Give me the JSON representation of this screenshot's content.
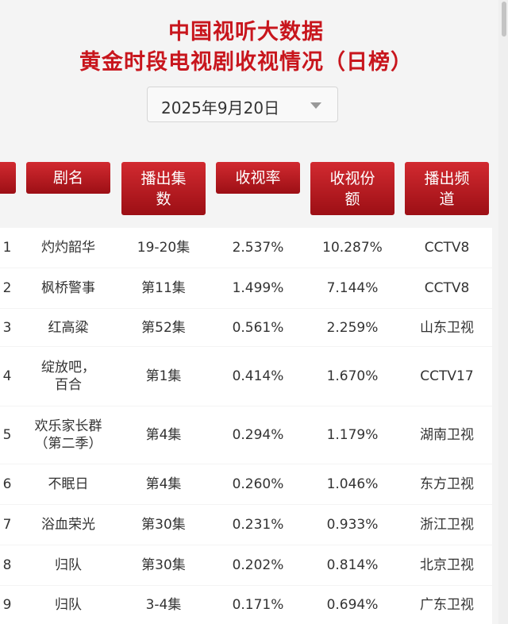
{
  "title_line1": "中国视听大数据",
  "title_line2": "黄金时段电视剧收视情况（日榜）",
  "date_select": {
    "value": "2025年9月20日",
    "icon": "chevron-down-icon"
  },
  "table": {
    "headers": {
      "name": "剧名",
      "episodes": "播出集数",
      "rating": "收视率",
      "share": "收视份额",
      "channel": "播出频道"
    },
    "rows": [
      {
        "rank": "1",
        "name": "灼灼韶华",
        "episodes": "19-20集",
        "rating": "2.537%",
        "share": "10.287%",
        "channel": "CCTV8"
      },
      {
        "rank": "2",
        "name": "枫桥警事",
        "episodes": "第11集",
        "rating": "1.499%",
        "share": "7.144%",
        "channel": "CCTV8"
      },
      {
        "rank": "3",
        "name": "红高粱",
        "episodes": "第52集",
        "rating": "0.561%",
        "share": "2.259%",
        "channel": "山东卫视"
      },
      {
        "rank": "4",
        "name": "绽放吧，百合",
        "episodes": "第1集",
        "rating": "0.414%",
        "share": "1.670%",
        "channel": "CCTV17"
      },
      {
        "rank": "5",
        "name": "欢乐家长群（第二季）",
        "episodes": "第4集",
        "rating": "0.294%",
        "share": "1.179%",
        "channel": "湖南卫视"
      },
      {
        "rank": "6",
        "name": "不眠日",
        "episodes": "第4集",
        "rating": "0.260%",
        "share": "1.046%",
        "channel": "东方卫视"
      },
      {
        "rank": "7",
        "name": "浴血荣光",
        "episodes": "第30集",
        "rating": "0.231%",
        "share": "0.933%",
        "channel": "浙江卫视"
      },
      {
        "rank": "8",
        "name": "归队",
        "episodes": "第30集",
        "rating": "0.202%",
        "share": "0.814%",
        "channel": "北京卫视"
      },
      {
        "rank": "9",
        "name": "归队",
        "episodes": "3-4集",
        "rating": "0.171%",
        "share": "0.694%",
        "channel": "广东卫视"
      }
    ]
  },
  "colors": {
    "title": "#c8161d",
    "header_bg": "#b81b22"
  }
}
